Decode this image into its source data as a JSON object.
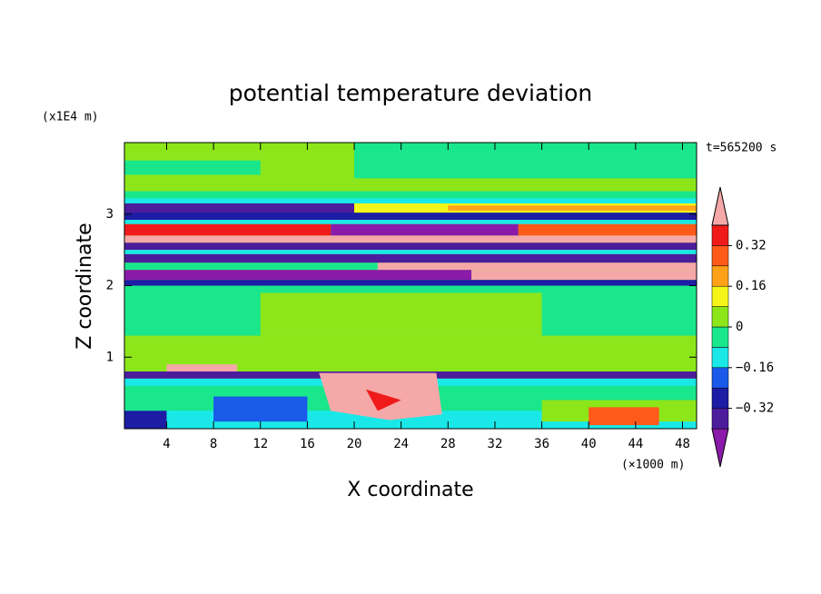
{
  "chart_data": {
    "type": "contour",
    "title": "potential temperature deviation",
    "xlabel": "X coordinate",
    "ylabel": "Z coordinate",
    "x_unit": "(×1000 m)",
    "y_unit": "(x1E4 m)",
    "annotation": "t=565200 s",
    "xlim": [
      0.4,
      49.2
    ],
    "xticks": [
      4,
      8,
      12,
      16,
      20,
      24,
      28,
      32,
      36,
      40,
      44,
      48
    ],
    "ylim": [
      0,
      4
    ],
    "yticks": [
      1,
      2,
      3
    ],
    "colorbar": {
      "levels": [
        -0.4,
        -0.32,
        -0.24,
        -0.16,
        -0.08,
        0,
        0.08,
        0.16,
        0.24,
        0.32,
        0.4
      ],
      "colors": [
        "#8a1aaa",
        "#4c1c9c",
        "#1c1ca4",
        "#1a5ae8",
        "#1ae8e8",
        "#1ae68c",
        "#8ce61a",
        "#f5f51a",
        "#ffa21a",
        "#ff5a1a",
        "#f01a1a",
        "#f5a8a8"
      ],
      "ticks": [
        {
          "value": 0.32,
          "label": "0.32"
        },
        {
          "value": 0.16,
          "label": "0.16"
        },
        0,
        {
          "value": -0.16,
          "label": "−0.16"
        },
        {
          "value": -0.32,
          "label": "−0.32"
        }
      ]
    }
  }
}
